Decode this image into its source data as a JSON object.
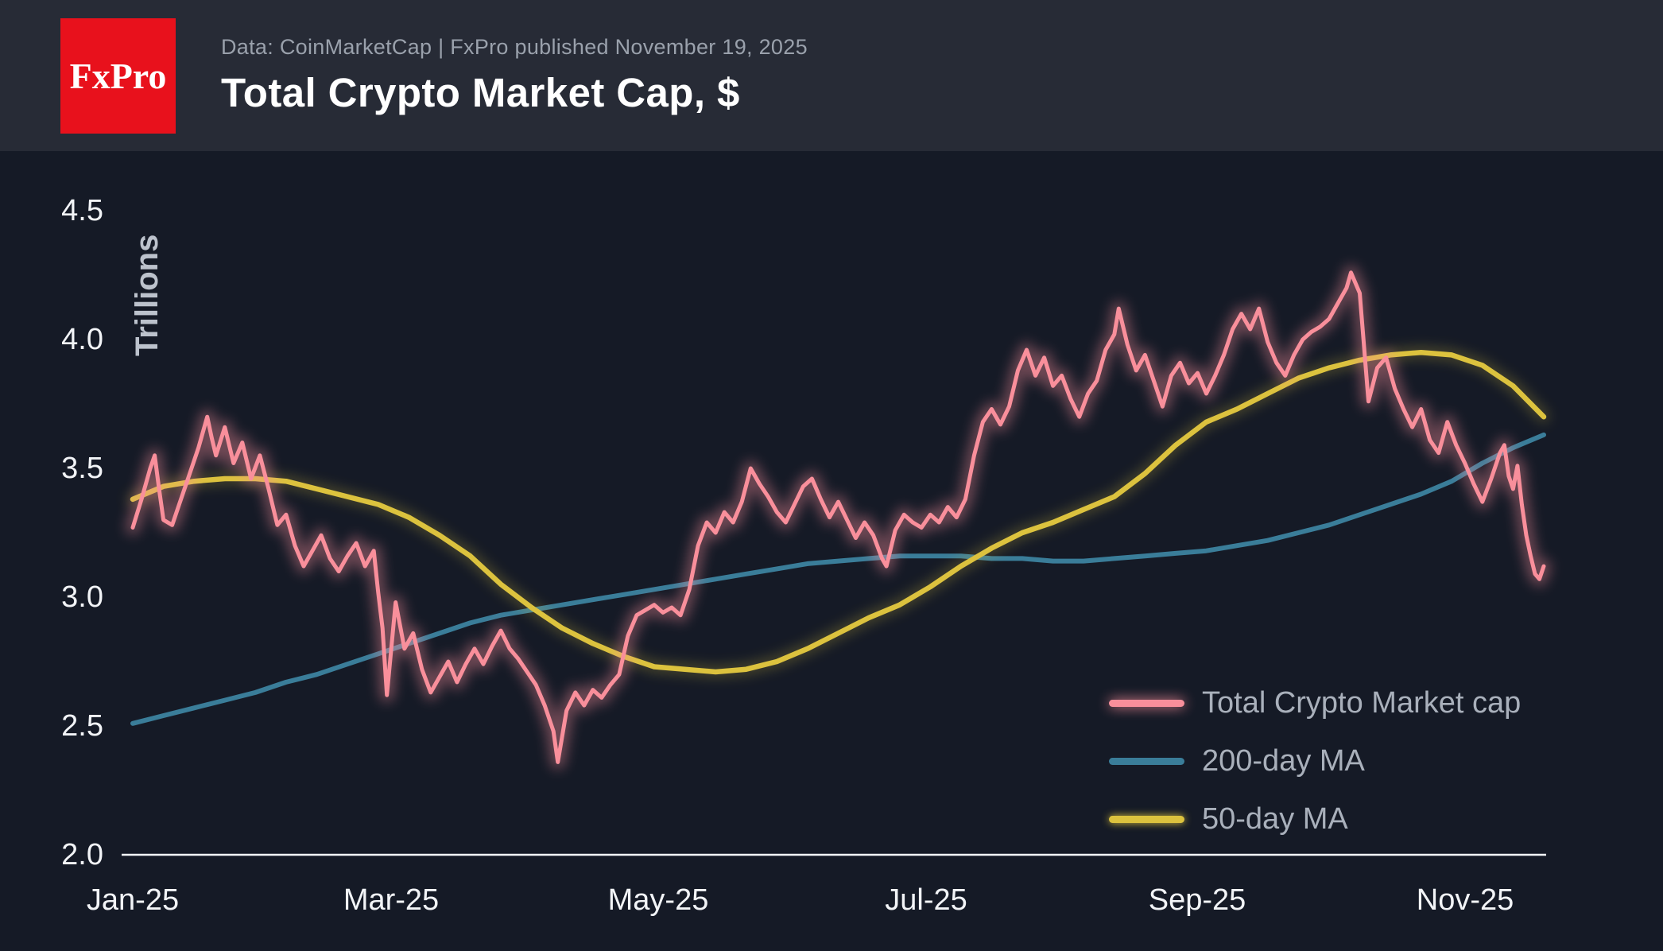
{
  "header": {
    "logo_text": "FxPro",
    "subtitle": "Data: CoinMarketCap | FxPro published November 19, 2025",
    "title": "Total Crypto Market Cap, $"
  },
  "chart_data": {
    "type": "line",
    "title": "Total Crypto Market Cap, $",
    "source": "CoinMarketCap",
    "published_date": "November 19, 2025",
    "ylabel": "Trillions",
    "ylim": [
      2.0,
      4.5
    ],
    "ytick_labels": [
      "4.5",
      "4.0",
      "3.5",
      "3.0",
      "2.5",
      "2.0"
    ],
    "xtick_labels": [
      "Jan-25",
      "Mar-25",
      "May-25",
      "Jul-25",
      "Sep-25",
      "Nov-25"
    ],
    "xtick_days": [
      0,
      59,
      120,
      181,
      243,
      304
    ],
    "x_unit": "days since 2025-01-01",
    "x_range": [
      0,
      322
    ],
    "grid": false,
    "legend_position": "bottom-right",
    "background_color": "#151a26",
    "header_color": "#272b36",
    "series": [
      {
        "name": "Total Crypto Market cap",
        "color": "#f98f9b",
        "x": [
          0,
          2,
          4,
          5,
          6,
          7,
          9,
          11,
          13,
          15,
          17,
          18,
          19,
          21,
          23,
          25,
          27,
          29,
          31,
          33,
          35,
          37,
          39,
          41,
          43,
          45,
          47,
          49,
          51,
          53,
          55,
          56,
          57,
          58,
          60,
          62,
          64,
          66,
          68,
          70,
          72,
          74,
          76,
          78,
          80,
          82,
          84,
          86,
          88,
          90,
          92,
          94,
          96,
          97,
          99,
          101,
          103,
          105,
          107,
          109,
          111,
          113,
          115,
          117,
          119,
          121,
          123,
          125,
          127,
          129,
          131,
          133,
          135,
          137,
          139,
          141,
          143,
          145,
          147,
          149,
          151,
          153,
          155,
          157,
          159,
          161,
          163,
          165,
          167,
          169,
          171,
          172,
          174,
          176,
          178,
          180,
          182,
          184,
          186,
          188,
          190,
          192,
          194,
          196,
          198,
          200,
          202,
          204,
          206,
          208,
          210,
          212,
          214,
          216,
          218,
          220,
          222,
          224,
          225,
          227,
          229,
          231,
          233,
          235,
          237,
          239,
          241,
          243,
          245,
          247,
          249,
          251,
          253,
          255,
          257,
          259,
          261,
          263,
          265,
          267,
          269,
          271,
          273,
          275,
          277,
          278,
          280,
          282,
          284,
          286,
          288,
          290,
          292,
          294,
          296,
          298,
          300,
          302,
          304,
          306,
          308,
          310,
          312,
          313,
          314,
          315,
          316,
          317,
          318,
          319,
          320,
          321,
          322
        ],
        "y": [
          3.27,
          3.38,
          3.5,
          3.55,
          3.42,
          3.3,
          3.28,
          3.38,
          3.48,
          3.58,
          3.7,
          3.62,
          3.55,
          3.66,
          3.52,
          3.6,
          3.46,
          3.55,
          3.42,
          3.28,
          3.32,
          3.2,
          3.12,
          3.18,
          3.24,
          3.15,
          3.1,
          3.16,
          3.21,
          3.12,
          3.18,
          3.02,
          2.88,
          2.62,
          2.98,
          2.8,
          2.86,
          2.72,
          2.63,
          2.69,
          2.75,
          2.67,
          2.74,
          2.8,
          2.74,
          2.81,
          2.87,
          2.8,
          2.76,
          2.71,
          2.66,
          2.58,
          2.48,
          2.36,
          2.56,
          2.63,
          2.58,
          2.64,
          2.61,
          2.66,
          2.7,
          2.85,
          2.93,
          2.95,
          2.97,
          2.94,
          2.96,
          2.93,
          3.03,
          3.2,
          3.29,
          3.25,
          3.33,
          3.29,
          3.37,
          3.5,
          3.44,
          3.39,
          3.33,
          3.29,
          3.36,
          3.43,
          3.46,
          3.38,
          3.31,
          3.37,
          3.3,
          3.23,
          3.29,
          3.24,
          3.15,
          3.12,
          3.26,
          3.32,
          3.29,
          3.27,
          3.32,
          3.29,
          3.35,
          3.31,
          3.38,
          3.55,
          3.68,
          3.73,
          3.67,
          3.74,
          3.88,
          3.96,
          3.86,
          3.93,
          3.82,
          3.86,
          3.77,
          3.7,
          3.79,
          3.84,
          3.96,
          4.02,
          4.12,
          3.98,
          3.88,
          3.94,
          3.84,
          3.74,
          3.86,
          3.91,
          3.83,
          3.87,
          3.79,
          3.86,
          3.94,
          4.04,
          4.1,
          4.04,
          4.12,
          3.99,
          3.91,
          3.86,
          3.94,
          4.0,
          4.03,
          4.05,
          4.08,
          4.14,
          4.2,
          4.26,
          4.18,
          3.76,
          3.89,
          3.93,
          3.81,
          3.73,
          3.66,
          3.73,
          3.61,
          3.56,
          3.68,
          3.59,
          3.52,
          3.44,
          3.37,
          3.46,
          3.56,
          3.59,
          3.47,
          3.42,
          3.51,
          3.36,
          3.24,
          3.16,
          3.09,
          3.07,
          3.12
        ]
      },
      {
        "name": "200-day MA",
        "color": "#3a7d99",
        "x": [
          0,
          7,
          14,
          21,
          28,
          35,
          42,
          49,
          56,
          63,
          70,
          77,
          84,
          91,
          98,
          105,
          112,
          119,
          126,
          133,
          140,
          147,
          154,
          161,
          168,
          175,
          182,
          189,
          196,
          203,
          210,
          217,
          224,
          231,
          238,
          245,
          252,
          259,
          266,
          273,
          280,
          287,
          294,
          301,
          308,
          315,
          322
        ],
        "y": [
          2.51,
          2.54,
          2.57,
          2.6,
          2.63,
          2.67,
          2.7,
          2.74,
          2.78,
          2.82,
          2.86,
          2.9,
          2.93,
          2.95,
          2.97,
          2.99,
          3.01,
          3.03,
          3.05,
          3.07,
          3.09,
          3.11,
          3.13,
          3.14,
          3.15,
          3.16,
          3.16,
          3.16,
          3.15,
          3.15,
          3.14,
          3.14,
          3.15,
          3.16,
          3.17,
          3.18,
          3.2,
          3.22,
          3.25,
          3.28,
          3.32,
          3.36,
          3.4,
          3.45,
          3.52,
          3.58,
          3.63
        ]
      },
      {
        "name": "50-day MA",
        "color": "#dcc23e",
        "x": [
          0,
          7,
          14,
          21,
          28,
          35,
          42,
          49,
          56,
          63,
          70,
          77,
          84,
          91,
          98,
          105,
          112,
          119,
          126,
          133,
          140,
          147,
          154,
          161,
          168,
          175,
          182,
          189,
          196,
          203,
          210,
          217,
          224,
          231,
          238,
          245,
          252,
          259,
          266,
          273,
          280,
          287,
          294,
          301,
          308,
          315,
          322
        ],
        "y": [
          3.38,
          3.43,
          3.45,
          3.46,
          3.46,
          3.45,
          3.42,
          3.39,
          3.36,
          3.31,
          3.24,
          3.16,
          3.05,
          2.96,
          2.88,
          2.82,
          2.77,
          2.73,
          2.72,
          2.71,
          2.72,
          2.75,
          2.8,
          2.86,
          2.92,
          2.97,
          3.04,
          3.12,
          3.19,
          3.25,
          3.29,
          3.34,
          3.39,
          3.48,
          3.59,
          3.68,
          3.73,
          3.79,
          3.85,
          3.89,
          3.92,
          3.94,
          3.95,
          3.94,
          3.9,
          3.82,
          3.7
        ]
      }
    ]
  }
}
